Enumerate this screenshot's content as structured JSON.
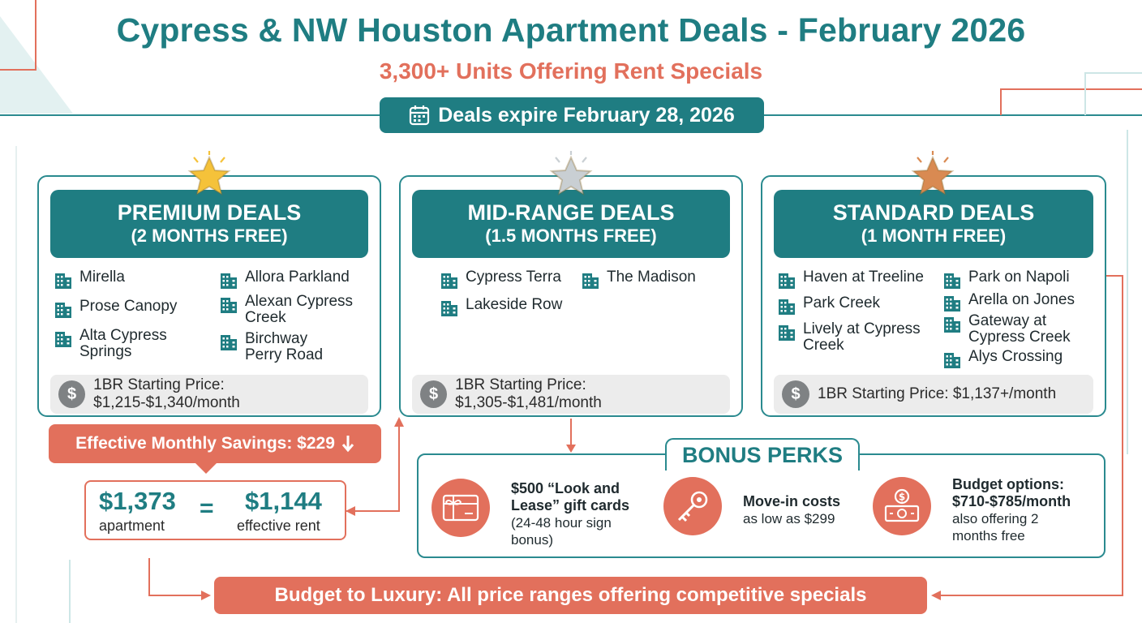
{
  "header": {
    "title": "Cypress & NW Houston Apartment Deals - February 2026",
    "subtitle": "3,300+ Units Offering Rent Specials",
    "expiry": "Deals expire February 28, 2026"
  },
  "tiers": [
    {
      "name": "PREMIUM DEALS",
      "offer": "(2 MONTHS FREE)",
      "star_color": "#f5c23a",
      "properties": [
        {
          "lines": [
            "Mirella"
          ]
        },
        {
          "lines": [
            "Allora Parkland"
          ]
        },
        {
          "lines": [
            "Prose Canopy"
          ]
        },
        {
          "lines": [
            "Alexan Cypress",
            "Creek"
          ]
        },
        {
          "lines": [
            "Alta Cypress",
            "Springs"
          ]
        },
        {
          "lines": [
            "Birchway",
            "Perry Road"
          ]
        }
      ],
      "price": "1BR Starting Price: $1,215-$1,340/month"
    },
    {
      "name": "MID-RANGE DEALS",
      "offer": "(1.5 MONTHS FREE)",
      "star_color": "#c9cfd3",
      "properties": [
        {
          "lines": [
            "Cypress Terra"
          ]
        },
        {
          "lines": [
            "The Madison"
          ]
        },
        {
          "lines": [
            "Lakeside Row"
          ]
        }
      ],
      "price": "1BR Starting Price: $1,305-$1,481/month"
    },
    {
      "name": "STANDARD DEALS",
      "offer": "(1 MONTH FREE)",
      "star_color": "#d98a52",
      "properties": [
        {
          "lines": [
            "Haven at Treeline"
          ]
        },
        {
          "lines": [
            "Park on Napoli"
          ]
        },
        {
          "lines": [
            "Park Creek"
          ]
        },
        {
          "lines": [
            "Arella on Jones"
          ]
        },
        {
          "lines": [
            "Lively at Cypress",
            "Creek"
          ]
        },
        {
          "lines": [
            "Gateway at",
            "Cypress Creek"
          ]
        },
        {
          "lines": [
            "Alys Crossing"
          ]
        }
      ],
      "price": "1BR Starting Price: $1,137+/month"
    }
  ],
  "savings": {
    "label": "Effective Monthly Savings: $229",
    "apartment_value": "$1,373",
    "apartment_label": "apartment",
    "equals": "=",
    "effective_value": "$1,144",
    "effective_label": "effective rent"
  },
  "bonus": {
    "title": "BONUS PERKS",
    "perks": [
      {
        "icon": "gift-card-icon",
        "bold": [
          "$500 “Look and",
          "Lease” gift cards"
        ],
        "rest": [
          "(24-48 hour sign",
          "bonus)"
        ]
      },
      {
        "icon": "key-icon",
        "bold": [
          "Move-in costs"
        ],
        "rest": [
          "as low as $299"
        ]
      },
      {
        "icon": "money-icon",
        "bold": [
          "Budget options:",
          "$710-$785/month"
        ],
        "rest": [
          "also offering 2",
          "months free"
        ]
      }
    ]
  },
  "footer": "Budget to Luxury: All price ranges offering competitive specials",
  "colors": {
    "teal": "#1f7d82",
    "coral": "#e2705c",
    "gray": "#ececec"
  }
}
